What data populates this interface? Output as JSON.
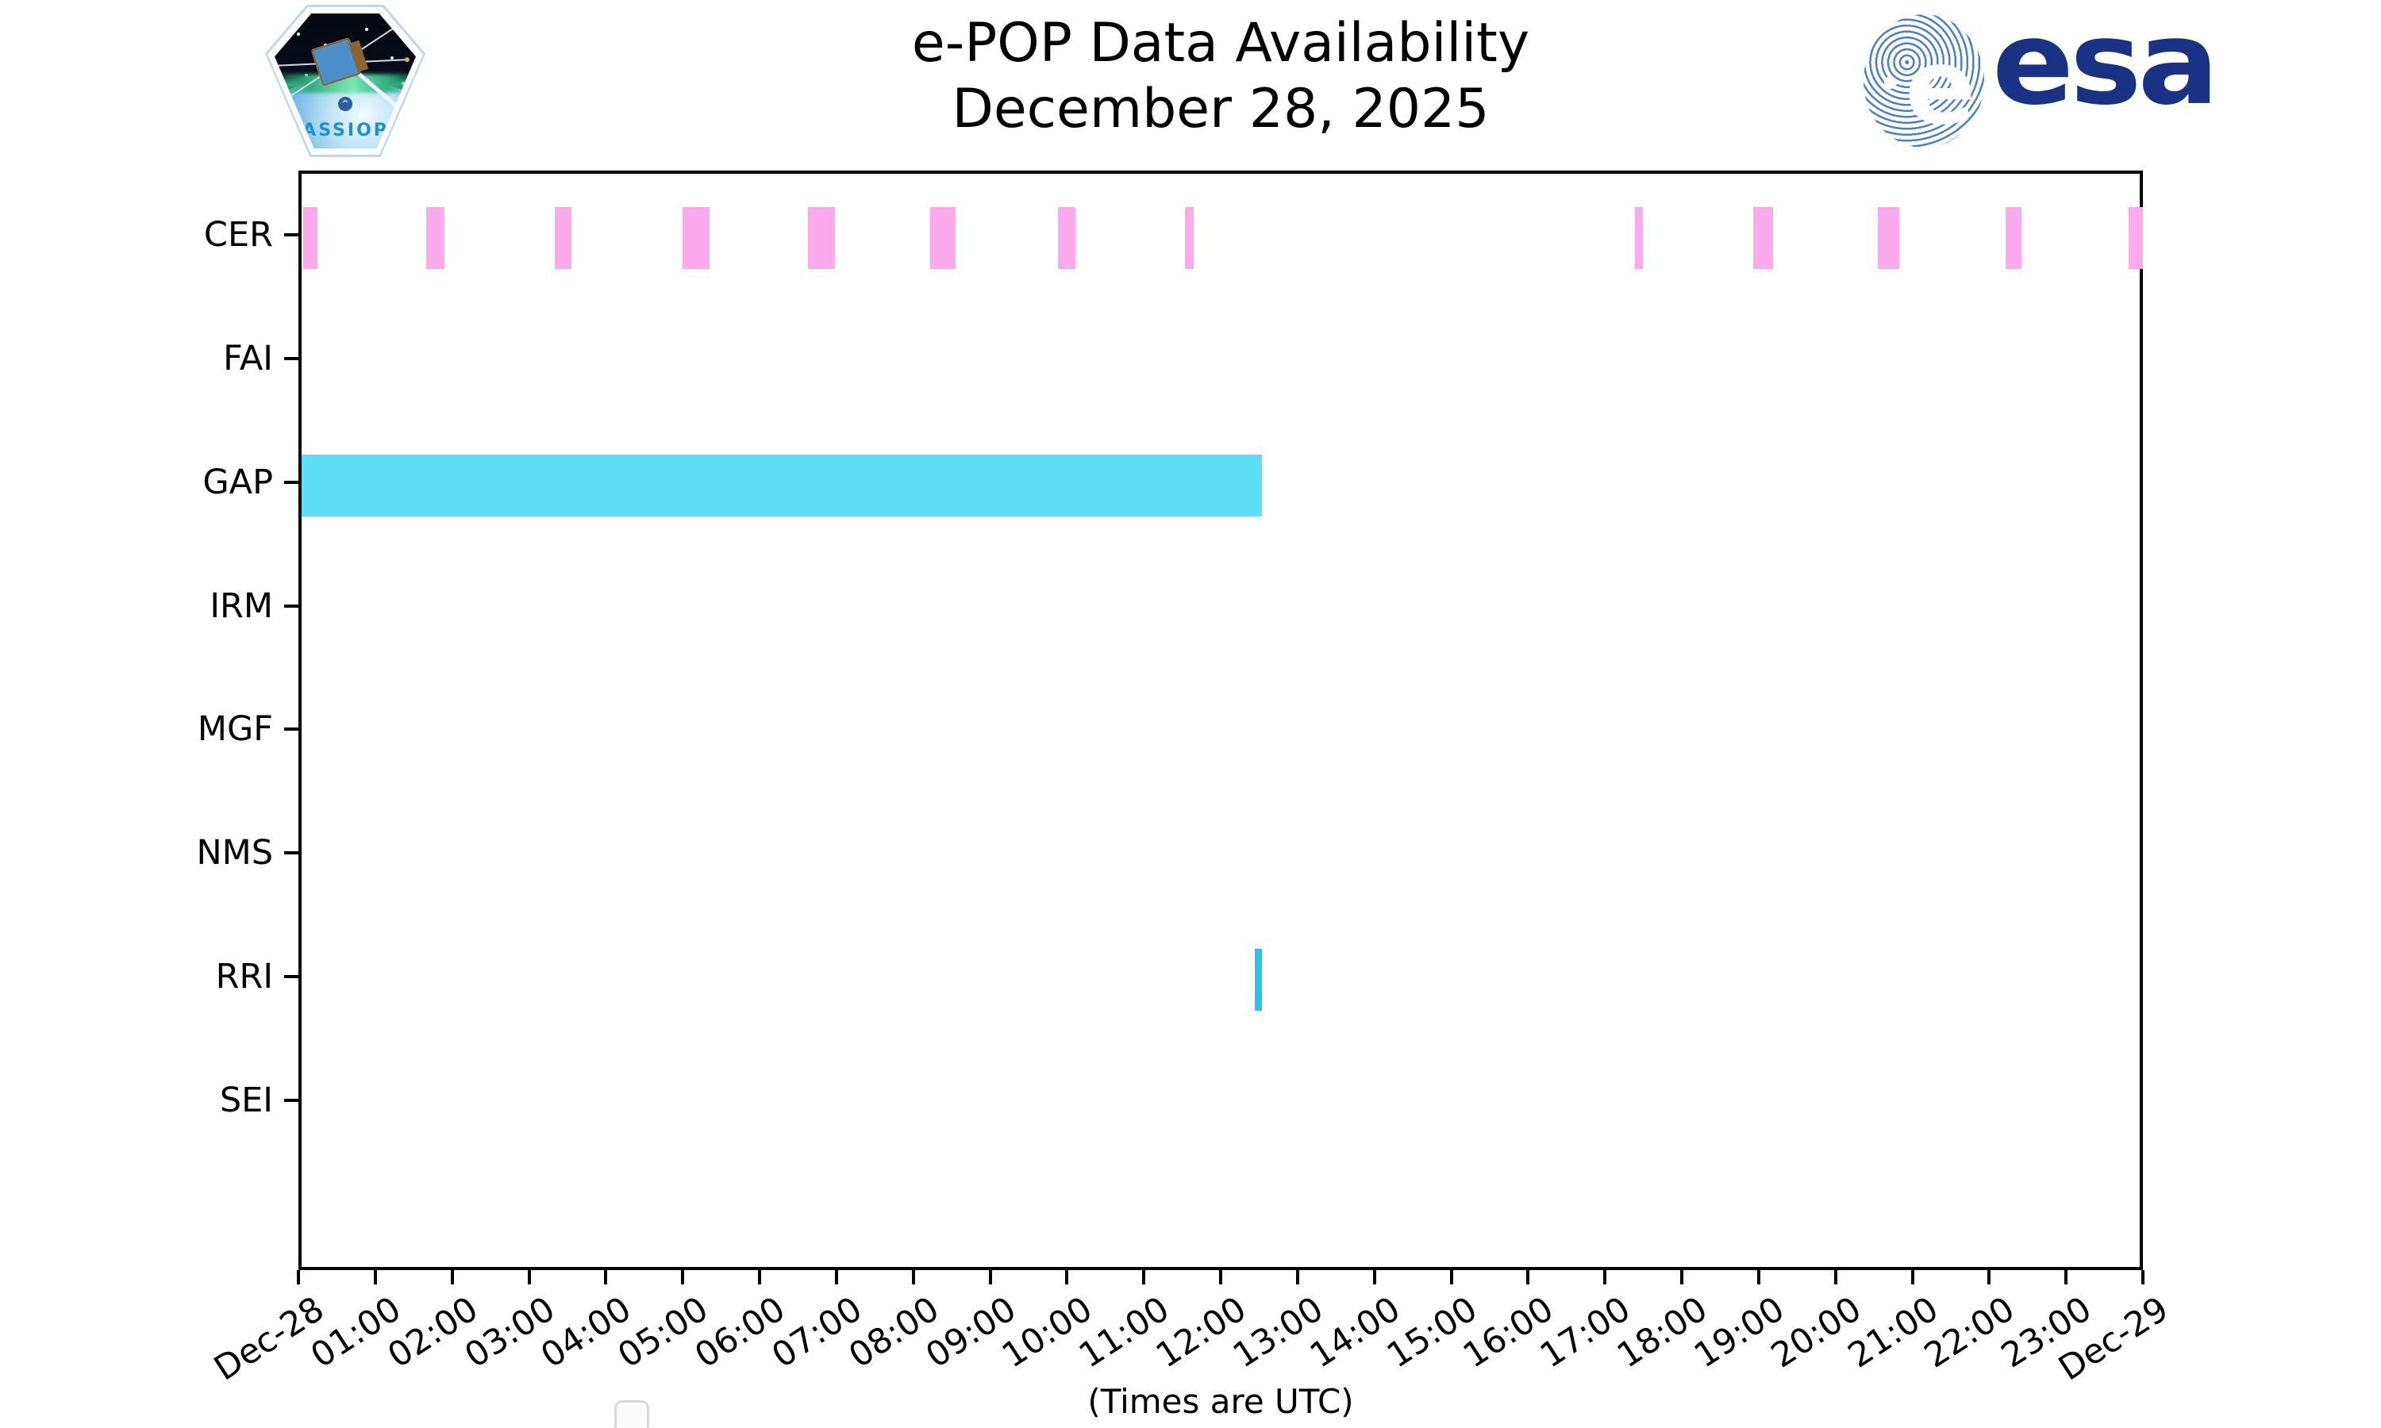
{
  "figure": {
    "title": "e-POP Data Availability",
    "subtitle": "December 28, 2025",
    "footer_note": "(Times are UTC)"
  },
  "logos": {
    "cassiope_label": "CASSIOPE",
    "esa_label": "esa"
  },
  "chart_data": {
    "type": "bar",
    "variant": "availability-timeline",
    "title": "e-POP Data Availability",
    "subtitle": "December 28, 2025",
    "xlabel": "(Times are UTC)",
    "grid": false,
    "legend": {
      "visible": true,
      "entries": [],
      "position": "lower left",
      "note": "empty legend box"
    },
    "x_axis": {
      "xlim_hours": [
        0,
        24
      ],
      "tick_interval_hours": 1,
      "label_rotation_deg": 33,
      "tick_labels": [
        "Dec-28",
        "01:00",
        "02:00",
        "03:00",
        "04:00",
        "05:00",
        "06:00",
        "07:00",
        "08:00",
        "09:00",
        "10:00",
        "11:00",
        "12:00",
        "13:00",
        "14:00",
        "15:00",
        "16:00",
        "17:00",
        "18:00",
        "19:00",
        "20:00",
        "21:00",
        "22:00",
        "23:00",
        "Dec-29"
      ]
    },
    "y_axis": {
      "rows_top_to_bottom": [
        "CER",
        "FAI",
        "GAP",
        "IRM",
        "MGF",
        "NMS",
        "RRI",
        "SEI"
      ]
    },
    "colors": {
      "cer_bars": "#fcaaee",
      "gap_bar": "#5edef7",
      "rri_bar": "#2ac2e6",
      "axis": "#000000"
    },
    "series": [
      {
        "instrument": "CER",
        "color": "#fcaaee",
        "intervals_hours": [
          [
            0.02,
            0.21
          ],
          [
            1.62,
            1.86
          ],
          [
            3.29,
            3.51
          ],
          [
            4.96,
            5.31
          ],
          [
            6.59,
            6.94
          ],
          [
            8.18,
            8.51
          ],
          [
            9.84,
            10.07
          ],
          [
            11.49,
            11.61
          ],
          [
            17.35,
            17.45
          ],
          [
            18.89,
            19.15
          ],
          [
            20.51,
            20.79
          ],
          [
            22.17,
            22.38
          ],
          [
            23.77,
            23.96
          ]
        ],
        "intervals_utc": [
          "00:01-00:13",
          "01:37-01:52",
          "03:17-03:31",
          "04:58-05:19",
          "06:35-06:56",
          "08:11-08:31",
          "09:50-10:04",
          "11:29-11:37",
          "17:21-17:27",
          "18:53-19:09",
          "20:31-20:47",
          "22:10-22:23",
          "23:46-23:58"
        ]
      },
      {
        "instrument": "FAI",
        "color": null,
        "intervals_hours": [],
        "intervals_utc": []
      },
      {
        "instrument": "GAP",
        "color": "#5edef7",
        "intervals_hours": [
          [
            0.0,
            12.5
          ]
        ],
        "intervals_utc": [
          "00:00-12:30"
        ]
      },
      {
        "instrument": "IRM",
        "color": null,
        "intervals_hours": [],
        "intervals_utc": []
      },
      {
        "instrument": "MGF",
        "color": null,
        "intervals_hours": [],
        "intervals_utc": []
      },
      {
        "instrument": "NMS",
        "color": null,
        "intervals_hours": [],
        "intervals_utc": []
      },
      {
        "instrument": "RRI",
        "color": "#2ac2e6",
        "intervals_hours": [
          [
            12.4,
            12.5
          ]
        ],
        "intervals_utc": [
          "12:24-12:30"
        ]
      },
      {
        "instrument": "SEI",
        "color": null,
        "intervals_hours": [],
        "intervals_utc": []
      }
    ]
  }
}
